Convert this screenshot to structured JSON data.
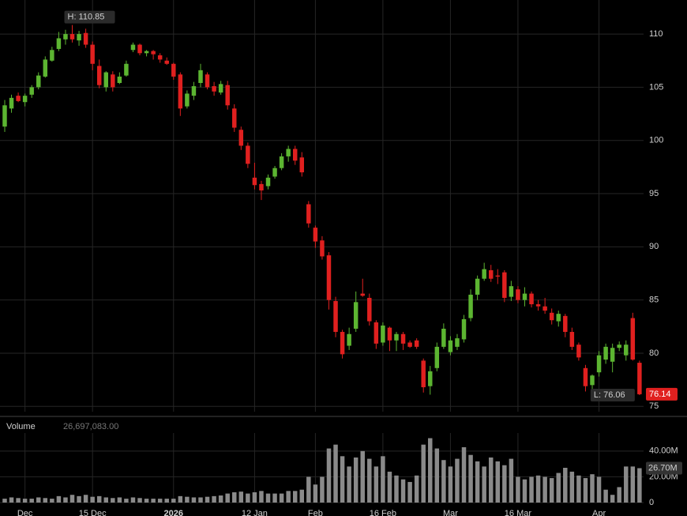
{
  "chart_data": [
    {
      "type": "candlestick",
      "x": [
        0,
        1,
        2,
        3,
        4,
        5,
        6,
        7,
        8,
        9,
        10,
        11,
        12,
        13,
        14,
        15,
        16,
        17,
        18,
        19,
        20,
        21,
        22,
        23,
        24,
        25,
        26,
        27,
        28,
        29,
        30,
        31,
        32,
        33,
        34,
        35,
        36,
        37,
        38,
        39,
        40,
        41,
        42,
        43,
        44,
        45,
        46,
        47,
        48,
        49,
        50,
        51,
        52,
        53,
        54,
        55,
        56,
        57,
        58,
        59,
        60,
        61,
        62,
        63,
        64,
        65,
        66,
        67,
        68,
        69,
        70,
        71,
        72,
        73,
        74,
        75,
        76,
        77,
        78,
        79,
        80,
        81,
        82,
        83,
        84,
        85,
        86,
        87,
        88,
        89,
        90,
        91,
        92,
        93,
        94
      ],
      "open": [
        101.3,
        103.0,
        104.2,
        103.6,
        104.3,
        105.0,
        106.0,
        107.5,
        108.6,
        109.5,
        110.0,
        109.4,
        110.1,
        109.0,
        107.0,
        105.0,
        106.2,
        105.4,
        106.1,
        108.5,
        109.0,
        108.2,
        108.4,
        108.0,
        107.5,
        107.2,
        106.2,
        103.2,
        104.2,
        105.4,
        106.2,
        105.1,
        104.5,
        105.2,
        103.0,
        101.0,
        99.5,
        96.5,
        95.9,
        95.7,
        96.6,
        97.4,
        98.5,
        99.2,
        98.4,
        94.0,
        91.8,
        90.6,
        89.2,
        84.9,
        82.0,
        80.7,
        82.3,
        85.6,
        85.2,
        82.9,
        81.0,
        82.4,
        81.2,
        81.8,
        81.0,
        81.2,
        79.3,
        76.9,
        78.6,
        80.6,
        80.1,
        80.6,
        81.3,
        83.3,
        85.5,
        87.0,
        87.8,
        87.3,
        87.6,
        85.3,
        86.0,
        85.0,
        85.6,
        84.6,
        84.4,
        83.8,
        83.0,
        83.5,
        82.0,
        80.8,
        78.6,
        77.0,
        78.2,
        79.4,
        79.2,
        80.5,
        79.8,
        83.3,
        79.1
      ],
      "high": [
        103.8,
        104.3,
        104.5,
        104.4,
        105.2,
        106.4,
        107.9,
        108.8,
        110.2,
        110.4,
        110.85,
        110.3,
        110.5,
        109.3,
        107.6,
        106.5,
        106.5,
        106.4,
        107.5,
        109.2,
        109.1,
        108.5,
        108.5,
        108.2,
        107.8,
        107.3,
        106.4,
        104.7,
        105.5,
        107.2,
        106.4,
        105.5,
        105.6,
        105.6,
        103.4,
        101.3,
        99.8,
        97.9,
        96.2,
        96.8,
        97.6,
        98.8,
        99.5,
        99.5,
        98.9,
        94.3,
        92.0,
        91.0,
        89.5,
        85.3,
        82.2,
        82.4,
        85.8,
        87.0,
        85.6,
        83.1,
        82.9,
        82.5,
        82.0,
        82.0,
        81.2,
        81.4,
        79.5,
        78.8,
        81.0,
        82.8,
        81.6,
        81.8,
        83.6,
        86.0,
        87.3,
        88.5,
        88.3,
        87.9,
        87.8,
        86.8,
        86.3,
        86.2,
        85.8,
        85.0,
        85.2,
        84.2,
        84.0,
        83.7,
        82.4,
        81.0,
        78.9,
        78.0,
        80.2,
        80.9,
        80.9,
        81.1,
        81.2,
        83.8,
        79.3
      ],
      "low": [
        100.8,
        102.6,
        103.6,
        103.2,
        104.0,
        104.8,
        105.9,
        107.4,
        108.4,
        109.0,
        109.2,
        108.9,
        108.7,
        106.6,
        104.9,
        104.6,
        104.6,
        105.3,
        106.0,
        108.3,
        108.0,
        107.9,
        107.6,
        107.3,
        107.1,
        105.7,
        102.3,
        103.0,
        103.8,
        105.0,
        104.8,
        104.2,
        104.3,
        102.9,
        100.8,
        99.1,
        97.4,
        95.4,
        94.4,
        95.4,
        96.4,
        97.2,
        98.0,
        97.7,
        96.6,
        91.8,
        89.9,
        88.8,
        84.1,
        81.5,
        79.5,
        80.3,
        82.0,
        85.3,
        82.6,
        80.4,
        80.7,
        80.2,
        80.2,
        80.3,
        80.5,
        80.4,
        76.3,
        76.1,
        78.3,
        80.4,
        79.8,
        80.3,
        81.0,
        83.0,
        85.0,
        86.8,
        86.7,
        86.5,
        84.8,
        84.9,
        84.7,
        84.4,
        84.3,
        84.0,
        83.7,
        82.7,
        82.5,
        81.5,
        80.3,
        79.3,
        76.4,
        76.3,
        77.8,
        79.0,
        78.2,
        80.2,
        79.3,
        79.3,
        76.06
      ],
      "close": [
        103.3,
        104.0,
        103.7,
        104.2,
        105.0,
        106.1,
        107.6,
        108.5,
        109.6,
        110.0,
        109.5,
        110.0,
        109.0,
        107.2,
        105.2,
        106.4,
        105.0,
        106.0,
        107.2,
        109.0,
        108.2,
        108.4,
        108.1,
        107.6,
        107.2,
        106.0,
        103.0,
        104.4,
        105.1,
        106.6,
        105.0,
        104.6,
        105.3,
        103.3,
        101.2,
        99.5,
        97.8,
        95.8,
        95.3,
        96.5,
        97.4,
        98.5,
        99.2,
        98.1,
        97.0,
        92.2,
        90.5,
        89.1,
        85.0,
        82.0,
        79.9,
        81.8,
        84.8,
        85.4,
        83.0,
        80.9,
        82.6,
        81.2,
        81.8,
        80.9,
        80.6,
        80.6,
        76.8,
        78.3,
        80.6,
        82.3,
        81.2,
        81.4,
        83.2,
        85.5,
        87.0,
        87.9,
        87.0,
        87.2,
        85.2,
        86.3,
        85.0,
        85.6,
        84.6,
        84.4,
        84.0,
        83.1,
        83.7,
        82.0,
        80.6,
        79.6,
        76.9,
        77.9,
        79.8,
        80.6,
        80.5,
        80.8,
        80.8,
        79.4,
        76.14
      ],
      "up_color": "#5cb531",
      "down_color": "#e0201f",
      "xlim": [
        -0.7,
        94.6
      ],
      "xticks": [
        {
          "value": 3,
          "label": "Dec"
        },
        {
          "value": 13,
          "label": "15 Dec"
        },
        {
          "value": 25,
          "label": "2026"
        },
        {
          "value": 37,
          "label": "12 Jan"
        },
        {
          "value": 46,
          "label": "Feb"
        },
        {
          "value": 56,
          "label": "16 Feb"
        },
        {
          "value": 66,
          "label": "Mar"
        },
        {
          "value": 76,
          "label": "16 Mar"
        },
        {
          "value": 88,
          "label": "Apr"
        }
      ],
      "ylim": [
        74.5,
        113.2
      ],
      "yticks": [
        75,
        80,
        85,
        90,
        95,
        100,
        105,
        110
      ],
      "grid": true,
      "annotations": [
        "H: 110.85",
        "L: 76.06"
      ],
      "last_price_label": "76.14"
    },
    {
      "type": "bar",
      "title": "Volume",
      "value_label": "26,697,083.00",
      "last_label": "26.70M",
      "values": [
        3000000,
        4000000,
        3500000,
        3000000,
        3000000,
        4000000,
        3500000,
        3000000,
        5000000,
        4000000,
        6000000,
        5000000,
        6000000,
        4500000,
        5000000,
        4000000,
        3500000,
        4000000,
        3000000,
        4000000,
        3500000,
        3000000,
        3000000,
        3000000,
        3000000,
        3000000,
        5000000,
        4500000,
        4000000,
        4000000,
        4500000,
        5000000,
        5500000,
        7000000,
        8000000,
        8500000,
        7000000,
        8000000,
        9000000,
        7000000,
        7000000,
        7000000,
        9000000,
        9000000,
        10000000,
        20000000,
        14000000,
        20000000,
        42000000,
        45000000,
        36000000,
        28000000,
        35000000,
        40000000,
        34000000,
        28000000,
        36000000,
        24000000,
        21000000,
        18000000,
        16000000,
        21000000,
        45000000,
        50000000,
        42000000,
        33000000,
        28000000,
        34000000,
        43000000,
        37000000,
        32000000,
        28000000,
        35000000,
        32000000,
        29000000,
        34000000,
        20000000,
        18000000,
        20000000,
        21000000,
        20000000,
        19000000,
        23000000,
        27000000,
        24000000,
        21000000,
        19000000,
        22000000,
        20000000,
        10000000,
        6000000,
        12000000,
        28000000,
        28000000,
        26697083
      ],
      "color": "#8a8a8a",
      "ylim": [
        0,
        54000000
      ],
      "yticks": [
        0,
        {
          "value": 20000000,
          "label": "20.00M"
        },
        {
          "value": 40000000,
          "label": "40.00M"
        }
      ],
      "grid": true
    }
  ]
}
